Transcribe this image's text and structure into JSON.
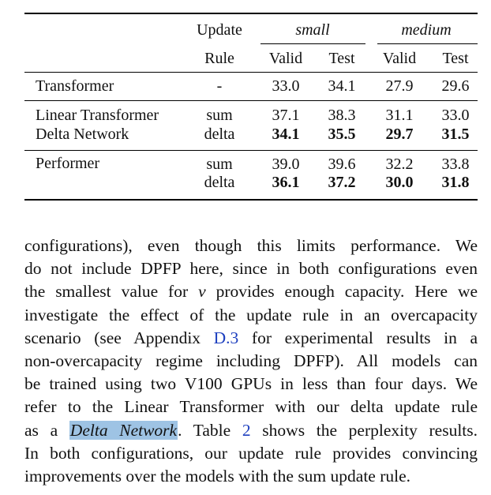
{
  "table": {
    "header": {
      "method_label": "",
      "update_label": "Update",
      "rule_label": "Rule",
      "group_small": "small",
      "group_medium": "medium",
      "col_valid": "Valid",
      "col_test": "Test"
    },
    "rows": [
      {
        "model": "Transformer",
        "rule": "-",
        "small_valid": "33.0",
        "small_test": "34.1",
        "medium_valid": "27.9",
        "medium_test": "29.6"
      },
      {
        "model": "Linear Transformer",
        "rule": "sum",
        "small_valid": "37.1",
        "small_test": "38.3",
        "medium_valid": "31.1",
        "medium_test": "33.0"
      },
      {
        "model": "Delta Network",
        "rule": "delta",
        "small_valid": "34.1",
        "small_test": "35.5",
        "medium_valid": "29.7",
        "medium_test": "31.5"
      },
      {
        "model": "Performer",
        "rule": "sum",
        "small_valid": "39.0",
        "small_test": "39.6",
        "medium_valid": "32.2",
        "medium_test": "33.8"
      },
      {
        "model": "",
        "rule": "delta",
        "small_valid": "36.1",
        "small_test": "37.2",
        "medium_valid": "30.0",
        "medium_test": "31.8"
      }
    ]
  },
  "paragraph": {
    "l1": "configurations), even though this limits performance. We",
    "l2": "do not include DPFP here, since in both configurations even",
    "l3a": "the smallest value for",
    "l3_nu": "ν",
    "l3b": "provides enough capacity. Here we",
    "l4": "investigate the effect of the update rule in an overcapacity",
    "l5a": "scenario (see Appendix",
    "l5_ref": "D.3",
    "l5b": "for experimental results in a",
    "l6": "non-overcapacity regime including DPFP). All models can",
    "l7": "be trained using two V100 GPUs in less than four days. We",
    "l8": "refer to the Linear Transformer with our delta update rule",
    "l9a": "as a",
    "l9_term": "Delta Network",
    "l9b": ". Table",
    "l9_ref": "2",
    "l9c": "shows the perplexity results.",
    "l10": "In both configurations, our update rule provides convincing",
    "l11": "improvements over the models with the sum update rule."
  },
  "colors": {
    "link": "#1d3fbf",
    "highlight": "#9ec3e4"
  }
}
